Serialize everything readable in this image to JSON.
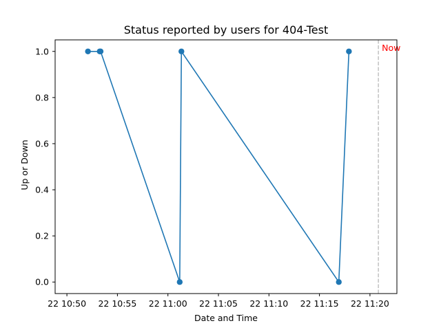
{
  "chart_data": {
    "type": "line",
    "title": "Status reported by users for 404-Test",
    "xlabel": "Date and Time",
    "ylabel": "Up or Down",
    "x_range": [
      "2022-06-22T10:48:50",
      "2022-06-22T11:22:40"
    ],
    "ylim": [
      -0.05,
      1.05
    ],
    "x_ticks": [
      {
        "value": "2022-06-22T10:50:00",
        "label": "22 10:50"
      },
      {
        "value": "2022-06-22T10:55:00",
        "label": "22 10:55"
      },
      {
        "value": "2022-06-22T11:00:00",
        "label": "22 11:00"
      },
      {
        "value": "2022-06-22T11:05:00",
        "label": "22 11:05"
      },
      {
        "value": "2022-06-22T11:10:00",
        "label": "22 11:10"
      },
      {
        "value": "2022-06-22T11:15:00",
        "label": "22 11:15"
      },
      {
        "value": "2022-06-22T11:20:00",
        "label": "22 11:20"
      }
    ],
    "y_ticks": [
      {
        "value": 0.0,
        "label": "0.0"
      },
      {
        "value": 0.2,
        "label": "0.2"
      },
      {
        "value": 0.4,
        "label": "0.4"
      },
      {
        "value": 0.6,
        "label": "0.6"
      },
      {
        "value": 0.8,
        "label": "0.8"
      },
      {
        "value": 1.0,
        "label": "1.0"
      }
    ],
    "series": [
      {
        "color": "#1f77b4",
        "points": [
          {
            "x": "2022-06-22T10:52:05",
            "y": 1
          },
          {
            "x": "2022-06-22T10:53:15",
            "y": 1
          },
          {
            "x": "2022-06-22T10:53:20",
            "y": 1
          },
          {
            "x": "2022-06-22T11:01:10",
            "y": 0
          },
          {
            "x": "2022-06-22T11:01:20",
            "y": 1
          },
          {
            "x": "2022-06-22T11:16:55",
            "y": 0
          },
          {
            "x": "2022-06-22T11:17:55",
            "y": 1
          }
        ]
      }
    ],
    "now_marker": {
      "x": "2022-06-22T11:20:50",
      "label": "Now",
      "line_color": "#c0c0c0",
      "label_color": "#ff0000"
    },
    "grid": false
  }
}
